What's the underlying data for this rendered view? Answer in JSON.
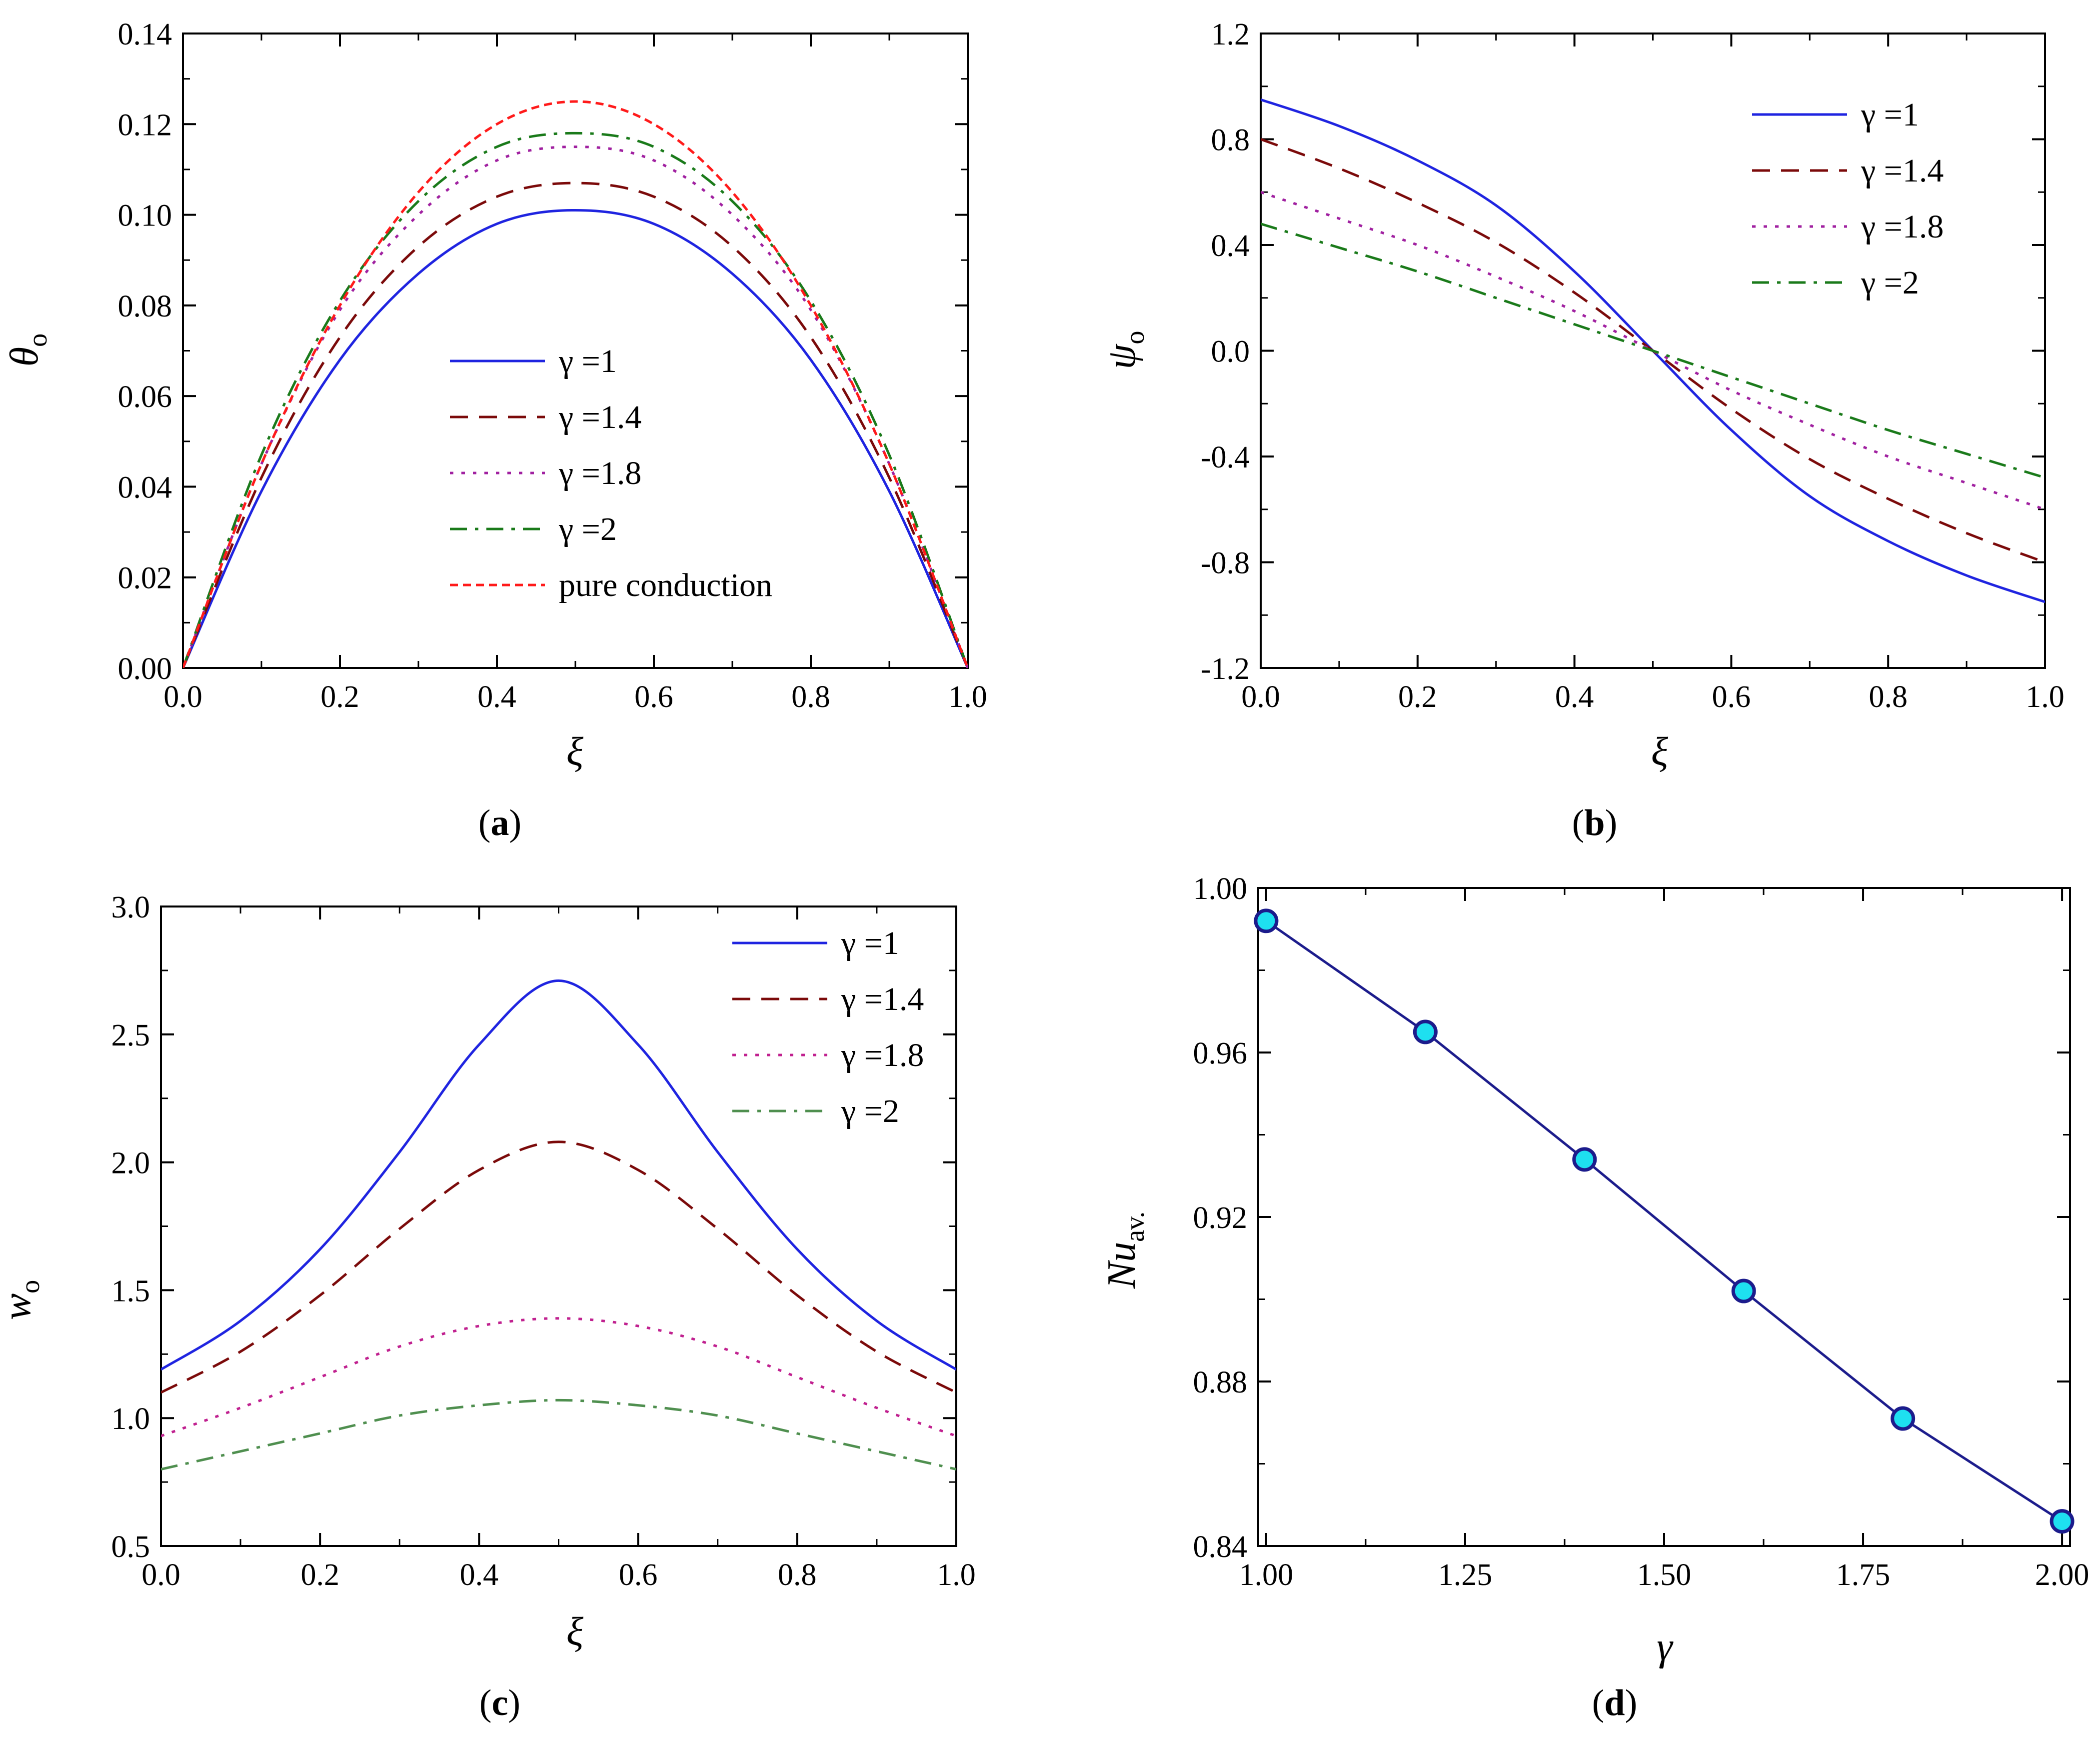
{
  "chart_data": [
    {
      "id": "a",
      "type": "line",
      "caption": "a",
      "xlabel": "ξ",
      "ylabel": "θ",
      "ylabel_sub": "o",
      "xlim": [
        0,
        1.0
      ],
      "ylim": [
        0,
        0.14
      ],
      "xticks": [
        "0.0",
        "0.2",
        "0.4",
        "0.6",
        "0.8",
        "1.0"
      ],
      "yticks": [
        "0.00",
        "0.02",
        "0.04",
        "0.06",
        "0.08",
        "0.10",
        "0.12",
        "0.14"
      ],
      "legend_position": "center",
      "x": [
        0,
        0.1,
        0.2,
        0.3,
        0.4,
        0.5,
        0.6,
        0.7,
        0.8,
        0.9,
        1.0
      ],
      "series": [
        {
          "name": "γ =1",
          "color": "#1f24e0",
          "dash": "solid",
          "values": [
            0,
            0.039,
            0.068,
            0.087,
            0.098,
            0.101,
            0.098,
            0.087,
            0.068,
            0.039,
            0
          ]
        },
        {
          "name": "γ =1.4",
          "color": "#7b0a0a",
          "dash": "dash",
          "values": [
            0,
            0.042,
            0.073,
            0.093,
            0.104,
            0.107,
            0.104,
            0.093,
            0.073,
            0.042,
            0
          ]
        },
        {
          "name": "γ =1.8",
          "color": "#a020a0",
          "dash": "dot",
          "values": [
            0,
            0.045,
            0.079,
            0.1,
            0.112,
            0.115,
            0.112,
            0.1,
            0.079,
            0.045,
            0
          ]
        },
        {
          "name": "γ =2",
          "color": "#1a7a1a",
          "dash": "dashdot",
          "values": [
            0,
            0.047,
            0.081,
            0.103,
            0.115,
            0.118,
            0.115,
            0.103,
            0.081,
            0.047,
            0
          ]
        },
        {
          "name": "pure conduction",
          "color": "#ff1a1a",
          "dash": "shortdash",
          "values": [
            0,
            0.045,
            0.08,
            0.105,
            0.12,
            0.125,
            0.12,
            0.105,
            0.08,
            0.045,
            0
          ]
        }
      ]
    },
    {
      "id": "b",
      "type": "line",
      "caption": "b",
      "xlabel": "ξ",
      "ylabel": "ψ",
      "ylabel_sub": "o",
      "xlim": [
        0,
        1.0
      ],
      "ylim": [
        -1.2,
        1.2
      ],
      "xticks": [
        "0.0",
        "0.2",
        "0.4",
        "0.6",
        "0.8",
        "1.0"
      ],
      "yticks": [
        "-1.2",
        "-0.8",
        "-0.4",
        "0.0",
        "0.4",
        "0.8",
        "1.2"
      ],
      "legend_position": "top-right",
      "x": [
        0,
        0.1,
        0.2,
        0.3,
        0.4,
        0.5,
        0.6,
        0.7,
        0.8,
        0.9,
        1.0
      ],
      "series": [
        {
          "name": "γ =1",
          "color": "#1f24e0",
          "dash": "solid",
          "values": [
            0.95,
            0.85,
            0.72,
            0.55,
            0.3,
            0,
            -0.3,
            -0.55,
            -0.72,
            -0.85,
            -0.95
          ]
        },
        {
          "name": "γ =1.4",
          "color": "#7b0a0a",
          "dash": "dash",
          "values": [
            0.8,
            0.69,
            0.56,
            0.41,
            0.22,
            0,
            -0.22,
            -0.41,
            -0.56,
            -0.69,
            -0.8
          ]
        },
        {
          "name": "γ =1.8",
          "color": "#a020a0",
          "dash": "dot",
          "values": [
            0.6,
            0.5,
            0.4,
            0.28,
            0.15,
            0,
            -0.15,
            -0.28,
            -0.4,
            -0.5,
            -0.6
          ]
        },
        {
          "name": "γ =2",
          "color": "#1a7a1a",
          "dash": "dashdot",
          "values": [
            0.48,
            0.39,
            0.3,
            0.2,
            0.1,
            0,
            -0.1,
            -0.2,
            -0.3,
            -0.39,
            -0.48
          ]
        }
      ]
    },
    {
      "id": "c",
      "type": "line",
      "caption": "c",
      "xlabel": "ξ",
      "ylabel": "w",
      "ylabel_sub": "o",
      "xlim": [
        0,
        1.0
      ],
      "ylim": [
        0.5,
        3.0
      ],
      "xticks": [
        "0.0",
        "0.2",
        "0.4",
        "0.6",
        "0.8",
        "1.0"
      ],
      "yticks": [
        "0.5",
        "1.0",
        "1.5",
        "2.0",
        "2.5",
        "3.0"
      ],
      "legend_position": "top-right",
      "x": [
        0,
        0.1,
        0.2,
        0.3,
        0.4,
        0.5,
        0.6,
        0.7,
        0.8,
        0.9,
        1.0
      ],
      "series": [
        {
          "name": "γ =1",
          "color": "#1f24e0",
          "dash": "solid",
          "values": [
            1.19,
            1.38,
            1.66,
            2.04,
            2.46,
            2.71,
            2.46,
            2.04,
            1.66,
            1.38,
            1.19
          ]
        },
        {
          "name": "γ =1.4",
          "color": "#7b0a0a",
          "dash": "dash",
          "values": [
            1.1,
            1.26,
            1.48,
            1.74,
            1.97,
            2.08,
            1.97,
            1.74,
            1.48,
            1.26,
            1.1
          ]
        },
        {
          "name": "γ =1.8",
          "color": "#c0208f",
          "dash": "dot",
          "values": [
            0.93,
            1.04,
            1.16,
            1.28,
            1.36,
            1.39,
            1.36,
            1.28,
            1.16,
            1.04,
            0.93
          ]
        },
        {
          "name": "γ =2",
          "color": "#4f8f4f",
          "dash": "dashdot",
          "values": [
            0.8,
            0.87,
            0.94,
            1.01,
            1.05,
            1.07,
            1.05,
            1.01,
            0.94,
            0.87,
            0.8
          ]
        }
      ]
    },
    {
      "id": "d",
      "type": "line",
      "caption": "d",
      "xlabel": "γ",
      "ylabel": "Nu",
      "ylabel_sub": "av.",
      "xlim": [
        0.99,
        2.01
      ],
      "ylim": [
        0.84,
        1.0
      ],
      "xticks": [
        "1.00",
        "1.25",
        "1.50",
        "1.75",
        "2.00"
      ],
      "xtick_values": [
        1.0,
        1.25,
        1.5,
        1.75,
        2.0
      ],
      "yticks": [
        "0.84",
        "0.88",
        "0.92",
        "0.96",
        "1.00"
      ],
      "legend_position": "none",
      "x": [
        1.0,
        1.2,
        1.4,
        1.6,
        1.8,
        2.0
      ],
      "series": [
        {
          "name": "Nu_av.",
          "color": "#1c1c8c",
          "marker_fill": "#1ee0f0",
          "dash": "solid",
          "values": [
            0.992,
            0.965,
            0.934,
            0.902,
            0.871,
            0.846
          ]
        }
      ]
    }
  ]
}
